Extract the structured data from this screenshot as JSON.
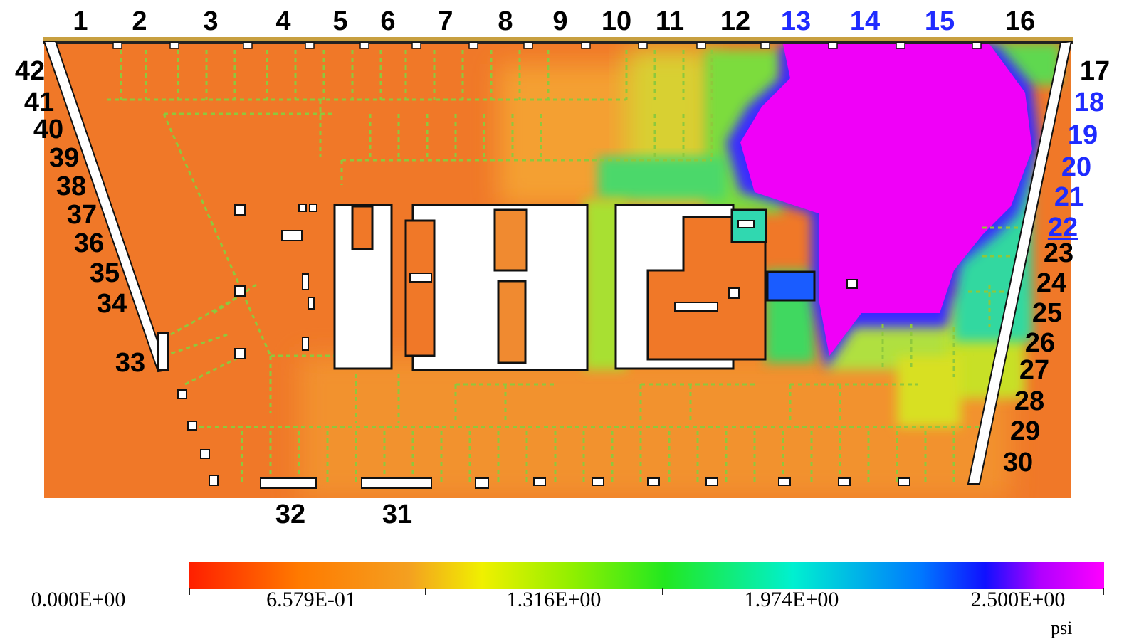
{
  "top_labels": [
    {
      "text": "1",
      "color": "black"
    },
    {
      "text": "2",
      "color": "black"
    },
    {
      "text": "3",
      "color": "black"
    },
    {
      "text": "4",
      "color": "black"
    },
    {
      "text": "5",
      "color": "black"
    },
    {
      "text": "6",
      "color": "black"
    },
    {
      "text": "7",
      "color": "black"
    },
    {
      "text": "8",
      "color": "black"
    },
    {
      "text": "9",
      "color": "black"
    },
    {
      "text": "10",
      "color": "black"
    },
    {
      "text": "11",
      "color": "black"
    },
    {
      "text": "12",
      "color": "black"
    },
    {
      "text": "13",
      "color": "blue"
    },
    {
      "text": "14",
      "color": "blue"
    },
    {
      "text": "15",
      "color": "blue"
    },
    {
      "text": "16",
      "color": "black"
    }
  ],
  "right_labels": [
    {
      "text": "17",
      "color": "black"
    },
    {
      "text": "18",
      "color": "blue"
    },
    {
      "text": "19",
      "color": "blue"
    },
    {
      "text": "20",
      "color": "blue"
    },
    {
      "text": "21",
      "color": "blue"
    },
    {
      "text": "22",
      "color": "blue",
      "underline": true
    },
    {
      "text": "23",
      "color": "black"
    },
    {
      "text": "24",
      "color": "black"
    },
    {
      "text": "25",
      "color": "black"
    },
    {
      "text": "26",
      "color": "black"
    },
    {
      "text": "27",
      "color": "black"
    },
    {
      "text": "28",
      "color": "black"
    },
    {
      "text": "29",
      "color": "black"
    },
    {
      "text": "30",
      "color": "black"
    }
  ],
  "bottom_labels": [
    {
      "text": "32",
      "color": "black"
    },
    {
      "text": "31",
      "color": "black"
    }
  ],
  "left_labels": [
    {
      "text": "42",
      "color": "black"
    },
    {
      "text": "41",
      "color": "black"
    },
    {
      "text": "40",
      "color": "black"
    },
    {
      "text": "39",
      "color": "black"
    },
    {
      "text": "38",
      "color": "black"
    },
    {
      "text": "37",
      "color": "black"
    },
    {
      "text": "36",
      "color": "black"
    },
    {
      "text": "35",
      "color": "black"
    },
    {
      "text": "34",
      "color": "black"
    },
    {
      "text": "33",
      "color": "black"
    }
  ],
  "colorbar": {
    "ticks": [
      "0.000E+00",
      "6.579E-01",
      "1.316E+00",
      "1.974E+00",
      "2.500E+00"
    ],
    "unit": "psi",
    "min": 0.0,
    "max": 2.5,
    "colors": [
      "#ff1f00",
      "#ff7a00",
      "#f0f000",
      "#22e820",
      "#00f0d0",
      "#1010ff",
      "#ff00ff"
    ]
  }
}
